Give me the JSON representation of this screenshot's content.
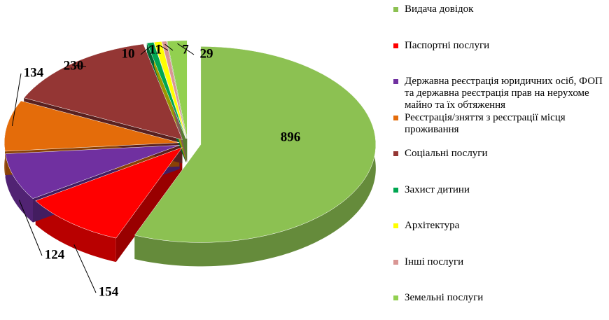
{
  "chart_data": {
    "type": "pie",
    "categories": [
      "Видача довідок",
      "Паспортні послуги",
      "Державна реєстрація юридичних осіб, ФОП та державна реєстрація прав на нерухоме майно та їх обтяження",
      "Реєстрація/зняття з реєстрації місця проживання",
      "Соціальні послуги",
      "Захист дитини",
      "Архітектура",
      "Інші послуги",
      "Земельні послуги"
    ],
    "values": [
      896,
      154,
      124,
      134,
      230,
      10,
      11,
      7,
      29
    ],
    "colors": [
      "#8cc152",
      "#ff0000",
      "#7030a0",
      "#e46c0a",
      "#943634",
      "#00a651",
      "#ffff00",
      "#d99694",
      "#92d050"
    ]
  }
}
